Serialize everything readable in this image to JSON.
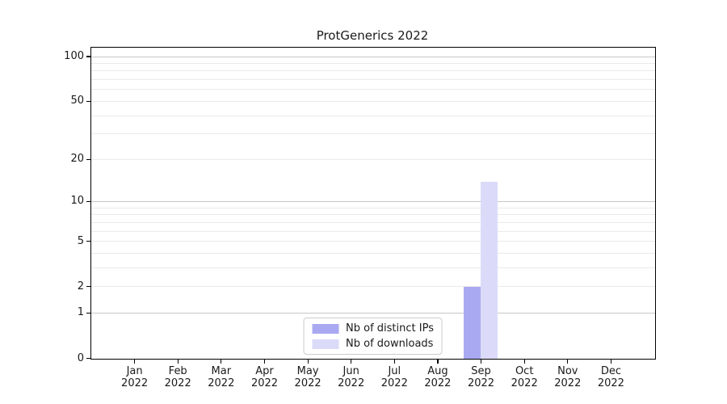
{
  "title": "ProtGenerics 2022",
  "chart_data": {
    "type": "bar",
    "title": "ProtGenerics 2022",
    "categories": [
      "Jan",
      "Feb",
      "Mar",
      "Apr",
      "May",
      "Jun",
      "Jul",
      "Aug",
      "Sep",
      "Oct",
      "Nov",
      "Dec"
    ],
    "category_year": "2022",
    "series": [
      {
        "name": "Nb of distinct IPs",
        "color": "#a9a9f2",
        "values": [
          0,
          0,
          0,
          0,
          0,
          0,
          0,
          0,
          2,
          0,
          0,
          0
        ]
      },
      {
        "name": "Nb of downloads",
        "color": "#dbdbf9",
        "values": [
          0,
          0,
          0,
          0,
          0,
          0,
          0,
          0,
          14,
          0,
          0,
          0
        ]
      }
    ],
    "yscale": "log1p",
    "ylim": [
      0,
      114
    ],
    "ytick_values": [
      100,
      50,
      20,
      10,
      5,
      2,
      1,
      0
    ],
    "grid_major_values": [
      1,
      10,
      100
    ],
    "grid_minor_values": [
      2,
      3,
      4,
      5,
      6,
      7,
      8,
      9,
      20,
      30,
      40,
      50,
      60,
      70,
      80,
      90
    ],
    "legend": {
      "position": "lower center"
    },
    "colors": {
      "grid_major": "#c8c8c8",
      "grid_minor": "#eaeaea",
      "spine": "#000000",
      "text": "#1a1a1a",
      "legend_border": "#cccccc",
      "background": "#ffffff"
    }
  }
}
